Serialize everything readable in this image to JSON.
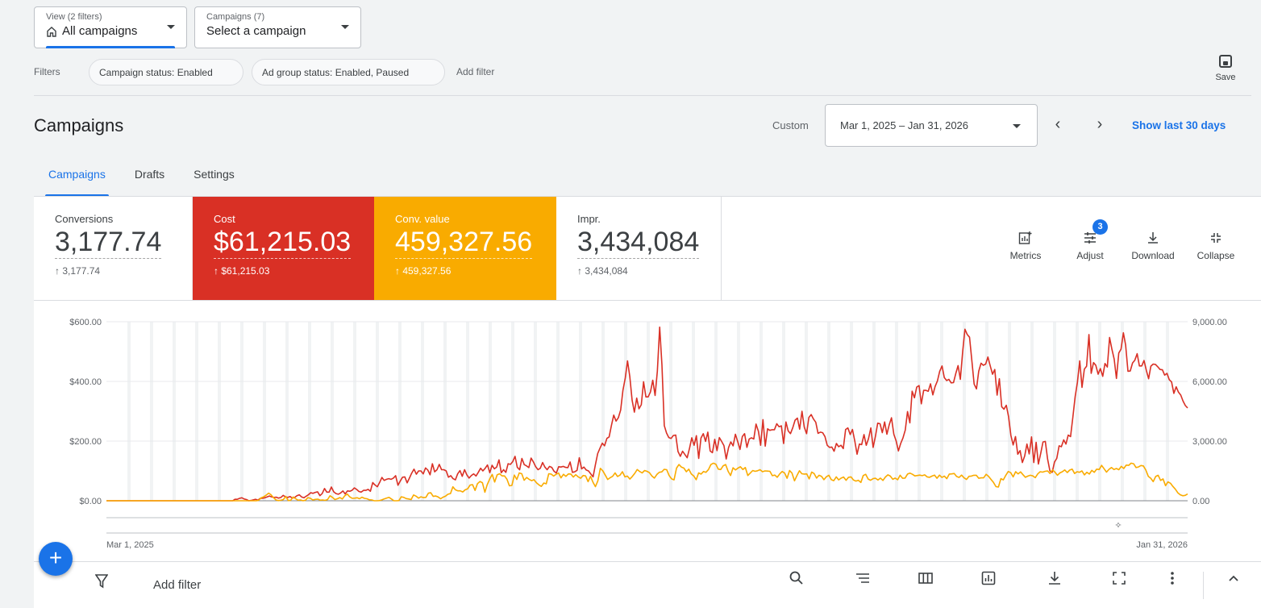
{
  "view_selector": {
    "label": "View (2 filters)",
    "value": "All campaigns",
    "icon": "home-icon"
  },
  "campaign_selector": {
    "label": "Campaigns (7)",
    "value": "Select a campaign"
  },
  "filters": {
    "label": "Filters",
    "chips": [
      "Campaign status: Enabled",
      "Ad group status: Enabled, Paused"
    ],
    "add_filter": "Add filter",
    "save_label": "Save"
  },
  "header": {
    "title": "Campaigns",
    "custom_label": "Custom",
    "date_range": "Mar 1, 2025 – Jan 31, 2026",
    "prev_arrow": "‹",
    "next_arrow": "›",
    "show_last": "Show last 30 days"
  },
  "tabs": [
    {
      "label": "Campaigns",
      "active": true
    },
    {
      "label": "Drafts",
      "active": false
    },
    {
      "label": "Settings",
      "active": false
    }
  ],
  "metrics": [
    {
      "label": "Conversions",
      "value": "3,177.74",
      "delta": "↑ 3,177.74",
      "color": "#ffffff"
    },
    {
      "label": "Cost",
      "value": "$61,215.03",
      "delta": "↑ $61,215.03",
      "color": "#d93025"
    },
    {
      "label": "Conv. value",
      "value": "459,327.56",
      "delta": "↑ 459,327.56",
      "color": "#f9ab00"
    },
    {
      "label": "Impr.",
      "value": "3,434,084",
      "delta": "↑ 3,434,084",
      "color": "#ffffff"
    }
  ],
  "tools": {
    "metrics_label": "Metrics",
    "adjust_label": "Adjust",
    "adjust_badge": "3",
    "download_label": "Download",
    "collapse_label": "Collapse"
  },
  "chart_data": {
    "type": "line",
    "left_axis_ticks": [
      "$600.00",
      "$400.00",
      "$200.00",
      "$0.00"
    ],
    "right_axis_ticks": [
      "9,000.00",
      "6,000.00",
      "3,000.00",
      "0.00"
    ],
    "ylim_left": [
      0,
      600
    ],
    "ylim_right": [
      0,
      9000
    ],
    "x_start_label": "Mar 1, 2025",
    "x_end_label": "Jan 31, 2026",
    "series": [
      {
        "name": "Cost",
        "color": "#d93025",
        "axis": "left",
        "values": [
          0,
          0,
          0,
          0,
          0,
          0,
          0,
          0,
          0,
          0,
          0,
          0,
          0,
          0,
          0,
          0,
          0,
          0,
          0,
          0,
          0,
          0,
          0,
          0,
          0,
          0,
          0,
          0,
          0,
          0,
          0,
          0,
          0,
          0,
          0,
          0,
          0,
          0,
          0,
          0,
          0,
          0,
          0,
          0,
          0,
          0,
          0,
          0,
          0,
          0,
          0,
          0,
          0,
          0,
          0,
          0,
          5,
          5,
          8,
          10,
          6,
          4,
          0,
          1,
          3,
          5,
          2,
          8,
          8,
          10,
          13,
          16,
          13,
          11,
          12,
          9,
          11,
          18,
          13,
          11,
          14,
          9,
          11,
          17,
          20,
          13,
          10,
          15,
          20,
          27,
          25,
          28,
          30,
          17,
          24,
          41,
          29,
          29,
          46,
          30,
          24,
          22,
          26,
          33,
          23,
          33,
          32,
          35,
          43,
          38,
          31,
          29,
          35,
          35,
          38,
          32,
          61,
          53,
          47,
          61,
          78,
          68,
          72,
          74,
          72,
          76,
          84,
          52,
          66,
          79,
          80,
          60,
          76,
          93,
          106,
          89,
          100,
          100,
          90,
          110,
          103,
          87,
          124,
          97,
          104,
          122,
          104,
          104,
          100,
          79,
          84,
          74,
          70,
          90,
          101,
          82,
          104,
          87,
          76,
          85,
          90,
          83,
          95,
          109,
          100,
          109,
          120,
          94,
          119,
          107,
          113,
          137,
          94,
          104,
          95,
          124,
          122,
          131,
          149,
          112,
          104,
          142,
          121,
          117,
          111,
          143,
          130,
          114,
          104,
          109,
          128,
          113,
          104,
          115,
          112,
          99,
          93,
          114,
          113,
          115,
          112,
          111,
          130,
          95,
          97,
          102,
          144,
          107,
          113,
          103,
          100,
          90,
          80,
          120,
          158,
          176,
          193,
          184,
          209,
          214,
          253,
          287,
          267,
          278,
          304,
          370,
          411,
          469,
          417,
          337,
          297,
          344,
          308,
          322,
          399,
          348,
          348,
          365,
          404,
          353,
          434,
          582,
          455,
          252,
          227,
          212,
          209,
          219,
          220,
          165,
          149,
          166,
          155,
          144,
          176,
          211,
          186,
          218,
          142,
          210,
          225,
          199,
          230,
          167,
          161,
          206,
          168,
          212,
          199,
          185,
          140,
          178,
          197,
          184,
          223,
          198,
          172,
          215,
          225,
          179,
          207,
          211,
          207,
          257,
          233,
          186,
          272,
          183,
          241,
          236,
          238,
          238,
          258,
          248,
          251,
          192,
          264,
          234,
          225,
          245,
          270,
          277,
          240,
          300,
          247,
          225,
          279,
          289,
          274,
          263,
          226,
          230,
          228,
          215,
          186,
          179,
          180,
          166,
          192,
          181,
          186,
          175,
          239,
          244,
          222,
          239,
          200,
          156,
          190,
          188,
          222,
          186,
          208,
          244,
          179,
          216,
          260,
          258,
          228,
          264,
          223,
          255,
          278,
          223,
          201,
          167,
          192,
          211,
          237,
          299,
          261,
          367,
          345,
          381,
          386,
          325,
          370,
          370,
          367,
          392,
          355,
          383,
          402,
          434,
          452,
          413,
          403,
          407,
          395,
          396,
          426,
          453,
          407,
          500,
          575,
          557,
          548,
          469,
          391,
          375,
          434,
          461,
          454,
          458,
          482,
          453,
          424,
          440,
          354,
          409,
          315,
          307,
          320,
          282,
          219,
          187,
          215,
          156,
          168,
          128,
          150,
          190,
          157,
          214,
          128,
          196,
          123,
          159,
          197,
          199,
          140,
          100,
          95,
          130,
          142,
          184,
          181,
          204,
          190,
          220,
          215,
          279,
          349,
          397,
          469,
          380,
          441,
          451,
          557,
          427,
          463,
          454,
          424,
          443,
          417,
          460,
          448,
          547,
          509,
          475,
          410,
          495,
          508,
          563,
          522,
          434,
          435,
          462,
          471,
          493,
          452,
          452,
          470,
          437,
          409,
          451,
          458,
          457,
          449,
          440,
          439,
          421,
          427,
          406,
          398,
          360,
          382,
          364,
          354,
          334,
          319,
          311
        ]
      },
      {
        "name": "Conv. value",
        "color": "#f9ab00",
        "axis": "right",
        "values": [
          0,
          0,
          0,
          0,
          0,
          0,
          0,
          0,
          0,
          0,
          0,
          0,
          0,
          0,
          0,
          0,
          0,
          0,
          0,
          0,
          0,
          0,
          0,
          0,
          0,
          0,
          0,
          0,
          0,
          0,
          0,
          0,
          0,
          0,
          0,
          0,
          0,
          0,
          0,
          0,
          0,
          0,
          0,
          0,
          0,
          0,
          0,
          0,
          0,
          0,
          0,
          0,
          0,
          0,
          0,
          0,
          0,
          0,
          0,
          0,
          0,
          0,
          30,
          150,
          200,
          280,
          380,
          300,
          160,
          40,
          10,
          30,
          60,
          220,
          10,
          30,
          190,
          100,
          30,
          40,
          0,
          30,
          160,
          120,
          40,
          70,
          80,
          30,
          40,
          20,
          60,
          250,
          170,
          60,
          100,
          160,
          90,
          250,
          340,
          200,
          120,
          130,
          150,
          100,
          180,
          120,
          100,
          50,
          40,
          0,
          0,
          10,
          40,
          90,
          130,
          170,
          90,
          0,
          0,
          10,
          200,
          170,
          110,
          90,
          60,
          290,
          230,
          130,
          200,
          160,
          170,
          380,
          400,
          220,
          240,
          190,
          100,
          180,
          230,
          330,
          360,
          700,
          550,
          500,
          500,
          440,
          550,
          600,
          790,
          810,
          520,
          860,
          970,
          910,
          430,
          820,
          1100,
          1320,
          940,
          1300,
          1360,
          1250,
          1250,
          1080,
          750,
          770,
          1290,
          1070,
          1400,
          1360,
          1030,
          1170,
          1080,
          1010,
          1060,
          900,
          800,
          720,
          890,
          850,
          1360,
          1340,
          1240,
          1330,
          1390,
          1150,
          1330,
          1230,
          1350,
          1340,
          1190,
          1310,
          1200,
          1130,
          1270,
          1250,
          960,
          1230,
          930,
          710,
          1000,
          1630,
          1510,
          1290,
          1070,
          1160,
          1230,
          1400,
          1220,
          1290,
          1460,
          1200,
          1240,
          1090,
          1220,
          1380,
          1570,
          1470,
          1400,
          1520,
          1480,
          1410,
          1240,
          1140,
          1320,
          1430,
          1450,
          1580,
          1560,
          1270,
          1100,
          1050,
          1640,
          1820,
          1690,
          1640,
          1460,
          1590,
          1350,
          1250,
          1060,
          1400,
          1340,
          1470,
          1430,
          1570,
          1820,
          1890,
          1840,
          1590,
          1570,
          1760,
          1820,
          1480,
          1270,
          1660,
          1550,
          1640,
          1710,
          1570,
          1670,
          1270,
          1390,
          1520,
          1480,
          1510,
          1560,
          1460,
          1500,
          1490,
          1480,
          1260,
          1290,
          1180,
          1350,
          1470,
          1390,
          1130,
          1520,
          1390,
          1000,
          1260,
          1510,
          1360,
          1340,
          1350,
          1100,
          1440,
          1370,
          1140,
          1280,
          1230,
          1060,
          1210,
          1280,
          1060,
          1010,
          1200,
          1050,
          1140,
          1190,
          1030,
          1180,
          1200,
          1040,
          990,
          1030,
          920,
          1270,
          1330,
          1090,
          1030,
          1110,
          1130,
          1040,
          1140,
          1020,
          1190,
          1300,
          1240,
          1080,
          1140,
          1060,
          1280,
          1130,
          1140,
          1340,
          1390,
          1330,
          1250,
          1270,
          1290,
          1260,
          1300,
          1200,
          1180,
          1240,
          1290,
          1130,
          1290,
          1170,
          1240,
          1110,
          1340,
          1350,
          1370,
          1220,
          1170,
          1290,
          1150,
          1070,
          1230,
          1240,
          1280,
          1280,
          1130,
          1150,
          1150,
          1330,
          1230,
          1070,
          920,
          710,
          690,
          1110,
          1050,
          1280,
          1470,
          1410,
          1200,
          1460,
          1350,
          1450,
          1310,
          1180,
          1240,
          1280,
          1250,
          1160,
          1350,
          1460,
          1440,
          1480,
          1500,
          1370,
          1550,
          1440,
          1280,
          1400,
          1460,
          1550,
          1420,
          1540,
          1590,
          1370,
          1460,
          1430,
          1500,
          1300,
          1430,
          1340,
          1530,
          1430,
          1590,
          1570,
          1780,
          1610,
          1440,
          1580,
          1670,
          1570,
          1620,
          1560,
          1730,
          1620,
          1790,
          1780,
          1890,
          1860,
          1670,
          1700,
          1770,
          1750,
          1540,
          1230,
          1130,
          960,
          1220,
          1280,
          1020,
          1100,
          760,
          950,
          880,
          720,
          580,
          400,
          300,
          250,
          270,
          340
        ]
      }
    ]
  },
  "bottom_bar": {
    "add_filter": "Add filter",
    "icons": [
      "search-icon",
      "segment-icon",
      "columns-icon",
      "reports-icon",
      "download-icon",
      "expand-icon",
      "more-icon",
      "collapse-icon"
    ]
  },
  "fab_label": "+"
}
